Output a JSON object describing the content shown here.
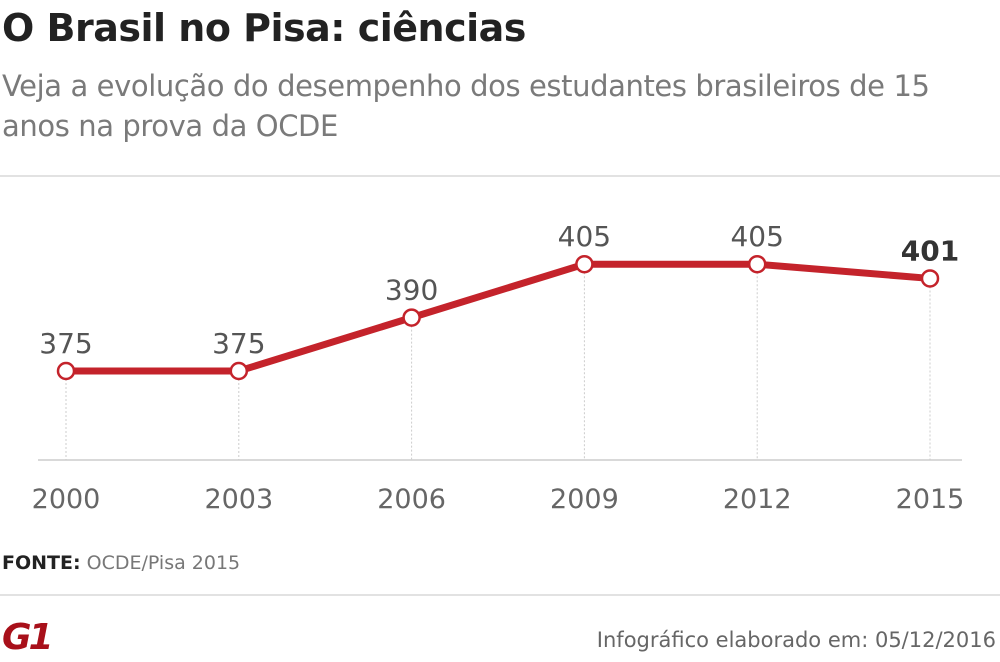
{
  "header": {
    "title": "O Brasil no Pisa: ciências",
    "subtitle": "Veja a evolução do desempenho dos estudantes brasileiros de 15 anos na prova da OCDE"
  },
  "chart_data": {
    "type": "line",
    "title": "O Brasil no Pisa: ciências",
    "categories": [
      "2000",
      "2003",
      "2006",
      "2009",
      "2012",
      "2015"
    ],
    "series": [
      {
        "values": [
          375,
          375,
          390,
          405,
          405,
          401
        ]
      }
    ],
    "data_labels": [
      "375",
      "375",
      "390",
      "405",
      "405",
      "401"
    ],
    "ylim": [
      350,
      420
    ],
    "grid": false,
    "colors": {
      "line": "#c4232b",
      "marker_fill": "#ffffff",
      "label": "#555555",
      "axis": "#d9d9d9"
    }
  },
  "footer": {
    "source_label": "FONTE:",
    "source_text": "OCDE/Pisa 2015",
    "logo": "G1",
    "credit": "Infográfico elaborado em: 05/12/2016"
  }
}
